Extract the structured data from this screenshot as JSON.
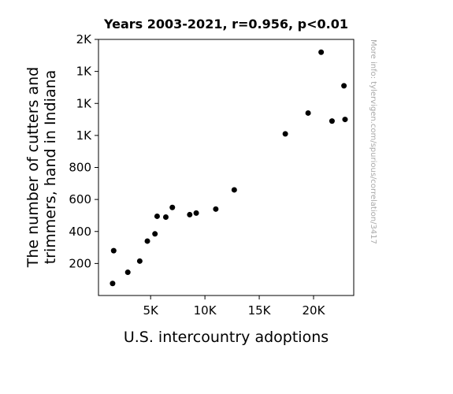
{
  "chart_data": {
    "type": "scatter",
    "title": "Years 2003-2021, r=0.956, p<0.01",
    "xlabel": "U.S. intercountry adoptions",
    "ylabel_lines": [
      "The number of cutters and",
      "trimmers, hand in Indiana"
    ],
    "xlim": [
      200,
      23700
    ],
    "ylim": [
      0,
      1600
    ],
    "x_ticks": [
      {
        "value": 5000,
        "label": "5K"
      },
      {
        "value": 10000,
        "label": "10K"
      },
      {
        "value": 15000,
        "label": "15K"
      },
      {
        "value": 20000,
        "label": "20K"
      }
    ],
    "y_ticks": [
      {
        "value": 200,
        "label": "200"
      },
      {
        "value": 400,
        "label": "400"
      },
      {
        "value": 600,
        "label": "600"
      },
      {
        "value": 800,
        "label": "800"
      },
      {
        "value": 1000,
        "label": "1K"
      },
      {
        "value": 1200,
        "label": "1K"
      },
      {
        "value": 1400,
        "label": "1K"
      },
      {
        "value": 1600,
        "label": "2K"
      }
    ],
    "points": [
      {
        "x": 22800,
        "y": 1310
      },
      {
        "x": 22900,
        "y": 1100
      },
      {
        "x": 20700,
        "y": 1520
      },
      {
        "x": 19500,
        "y": 1140
      },
      {
        "x": 21700,
        "y": 1090
      },
      {
        "x": 17400,
        "y": 1010
      },
      {
        "x": 12700,
        "y": 660
      },
      {
        "x": 11000,
        "y": 540
      },
      {
        "x": 9200,
        "y": 515
      },
      {
        "x": 8600,
        "y": 505
      },
      {
        "x": 7000,
        "y": 550
      },
      {
        "x": 6400,
        "y": 490
      },
      {
        "x": 5600,
        "y": 495
      },
      {
        "x": 5400,
        "y": 385
      },
      {
        "x": 4700,
        "y": 340
      },
      {
        "x": 4000,
        "y": 215
      },
      {
        "x": 2900,
        "y": 145
      },
      {
        "x": 1600,
        "y": 280
      },
      {
        "x": 1500,
        "y": 75
      }
    ],
    "point_color": "#000000",
    "grid": false
  },
  "watermark": "More info: tylervigen.com/spurious/correlation/3417"
}
